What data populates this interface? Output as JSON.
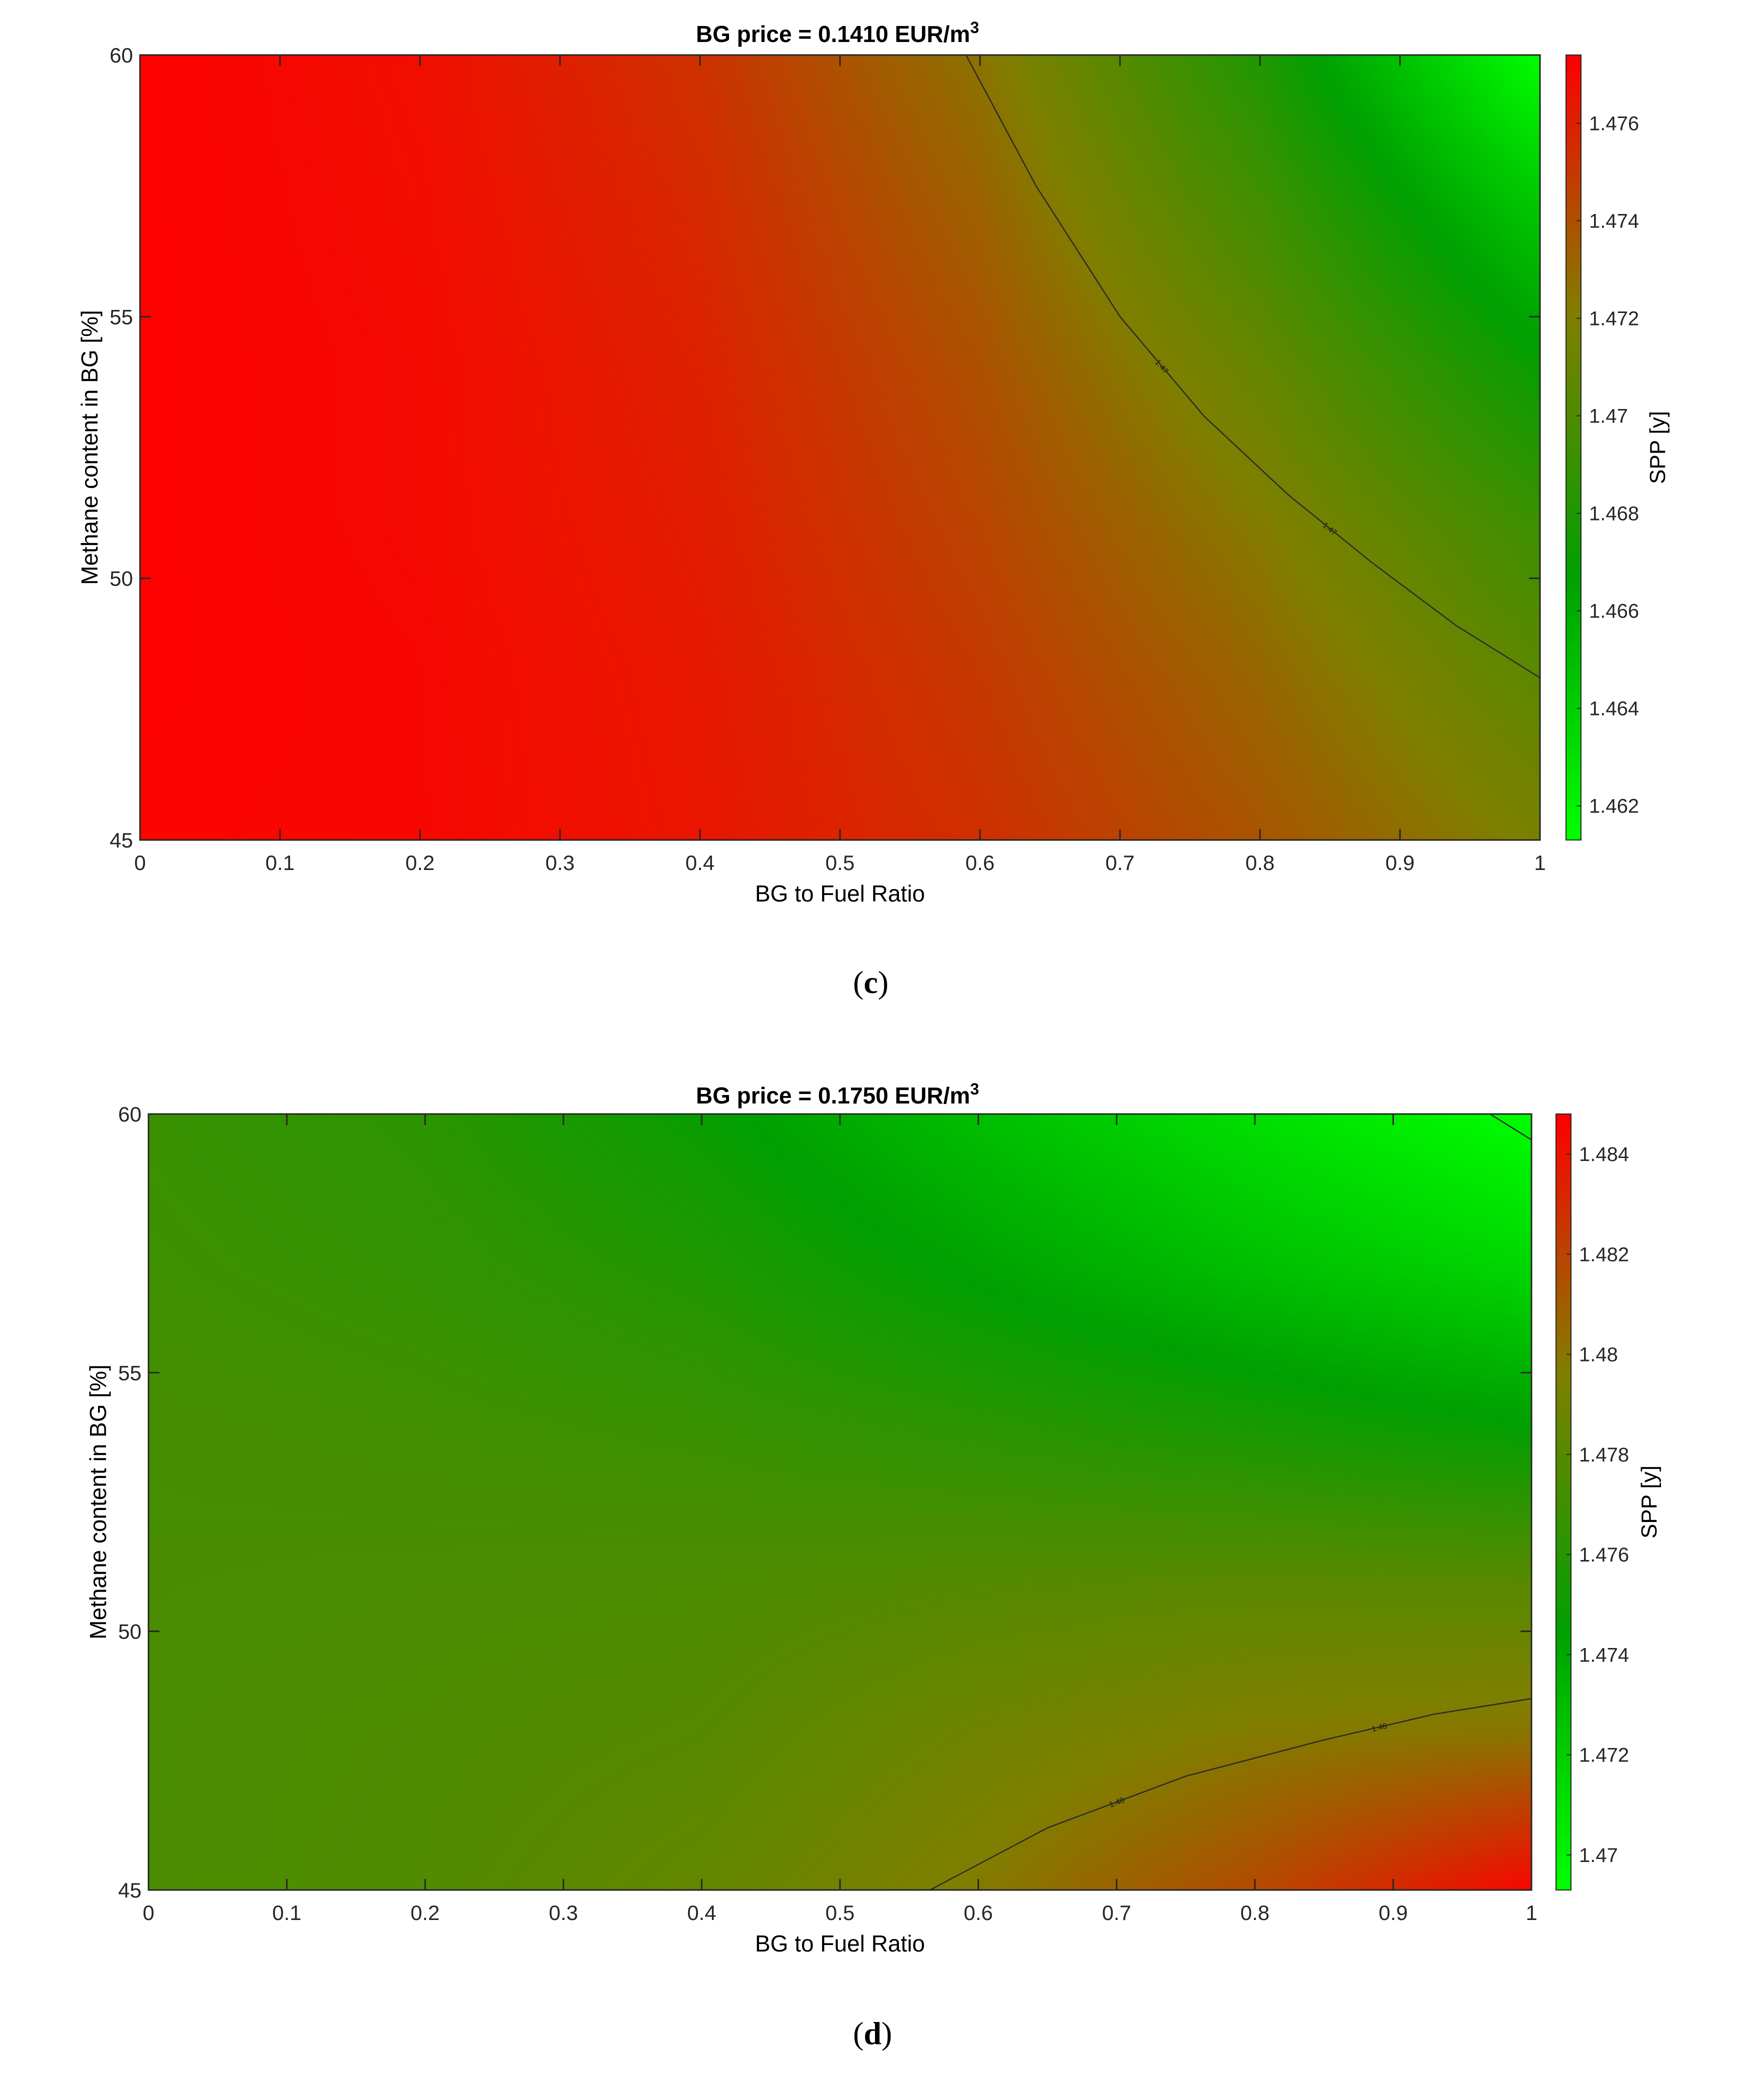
{
  "colors": {
    "red": "#ff0000",
    "mid": "#7f7f00",
    "dark_green": "#00a000",
    "bright_green": "#00ff00",
    "contour": "#2b2b2b",
    "axis": "#262626"
  },
  "chart_data": [
    {
      "type": "heatmap",
      "panel_label": "c",
      "title": "BG price = 0.1410 EUR/m",
      "title_superscript": "3",
      "xlabel": "BG to Fuel Ratio",
      "ylabel": "Methane content in BG [%]",
      "colorbar_label": "SPP [y]",
      "xlim": [
        0,
        1
      ],
      "ylim": [
        45,
        60
      ],
      "xticks": [
        "0",
        "0.1",
        "0.2",
        "0.3",
        "0.4",
        "0.5",
        "0.6",
        "0.7",
        "0.8",
        "0.9",
        "1"
      ],
      "yticks": [
        "45",
        "50",
        "55",
        "60"
      ],
      "clim": [
        1.4613,
        1.4774
      ],
      "cticks": [
        "1.462",
        "1.464",
        "1.466",
        "1.468",
        "1.47",
        "1.472",
        "1.474",
        "1.476"
      ],
      "colormap": [
        "#00ff00",
        "#00a000",
        "#7f7f00",
        "#ff0000"
      ],
      "grid": false,
      "legend": "colorbar-right",
      "contours": [
        {
          "level": 1.47,
          "labels": [
            "1.47",
            "1.47"
          ],
          "x": [
            0.59,
            0.64,
            0.7,
            0.76,
            0.82,
            0.88,
            0.94,
            1.0
          ],
          "y": [
            60.0,
            57.5,
            55.0,
            53.1,
            51.6,
            50.3,
            49.1,
            48.1
          ]
        }
      ],
      "surface": {
        "x": [
          0,
          0.2,
          0.4,
          0.6,
          0.8,
          1.0
        ],
        "y": [
          45,
          48,
          51,
          54,
          57,
          60
        ],
        "z": [
          [
            1.4772,
            1.4771,
            1.4765,
            1.4754,
            1.4738,
            1.4718
          ],
          [
            1.4773,
            1.4771,
            1.4764,
            1.475,
            1.4731,
            1.4706
          ],
          [
            1.4773,
            1.477,
            1.4762,
            1.4745,
            1.4722,
            1.4692
          ],
          [
            1.4773,
            1.477,
            1.476,
            1.474,
            1.471,
            1.467
          ],
          [
            1.4773,
            1.4769,
            1.4757,
            1.4733,
            1.4695,
            1.4645
          ],
          [
            1.4773,
            1.4768,
            1.4753,
            1.4725,
            1.468,
            1.4613
          ]
        ]
      }
    },
    {
      "type": "heatmap",
      "panel_label": "d",
      "title": "BG price = 0.1750 EUR/m",
      "title_superscript": "3",
      "xlabel": "BG to Fuel Ratio",
      "ylabel": "Methane content in BG [%]",
      "colorbar_label": "SPP [y]",
      "xlim": [
        0,
        1
      ],
      "ylim": [
        45,
        60
      ],
      "xticks": [
        "0",
        "0.1",
        "0.2",
        "0.3",
        "0.4",
        "0.5",
        "0.6",
        "0.7",
        "0.8",
        "0.9",
        "1"
      ],
      "yticks": [
        "45",
        "50",
        "55",
        "60"
      ],
      "clim": [
        1.4693,
        1.4848
      ],
      "cticks": [
        "1.47",
        "1.472",
        "1.474",
        "1.476",
        "1.478",
        "1.48",
        "1.482",
        "1.484"
      ],
      "colormap": [
        "#00ff00",
        "#00a000",
        "#7f7f00",
        "#ff0000"
      ],
      "grid": false,
      "legend": "colorbar-right",
      "contours": [
        {
          "level": 1.48,
          "labels": [
            "1.48",
            "1.48"
          ],
          "x": [
            0.565,
            0.65,
            0.75,
            0.85,
            0.93,
            1.0
          ],
          "y": [
            45.0,
            46.2,
            47.2,
            47.9,
            48.4,
            48.7
          ]
        },
        {
          "level": 1.469,
          "labels": [],
          "x": [
            0.97,
            1.0
          ],
          "y": [
            60.0,
            59.5
          ]
        }
      ],
      "surface": {
        "x": [
          0,
          0.2,
          0.4,
          0.6,
          0.8,
          1.0
        ],
        "y": [
          45,
          48,
          51,
          54,
          57,
          60
        ],
        "z": [
          [
            1.4775,
            1.4778,
            1.4785,
            1.4798,
            1.4818,
            1.4846
          ],
          [
            1.4775,
            1.4777,
            1.478,
            1.479,
            1.4798,
            1.4801
          ],
          [
            1.4774,
            1.4775,
            1.4776,
            1.4779,
            1.4781,
            1.478
          ],
          [
            1.4773,
            1.4771,
            1.4768,
            1.4762,
            1.4754,
            1.4745
          ],
          [
            1.477,
            1.4766,
            1.4758,
            1.4743,
            1.4728,
            1.4715
          ],
          [
            1.4768,
            1.4762,
            1.4748,
            1.4728,
            1.471,
            1.4693
          ]
        ]
      }
    }
  ]
}
